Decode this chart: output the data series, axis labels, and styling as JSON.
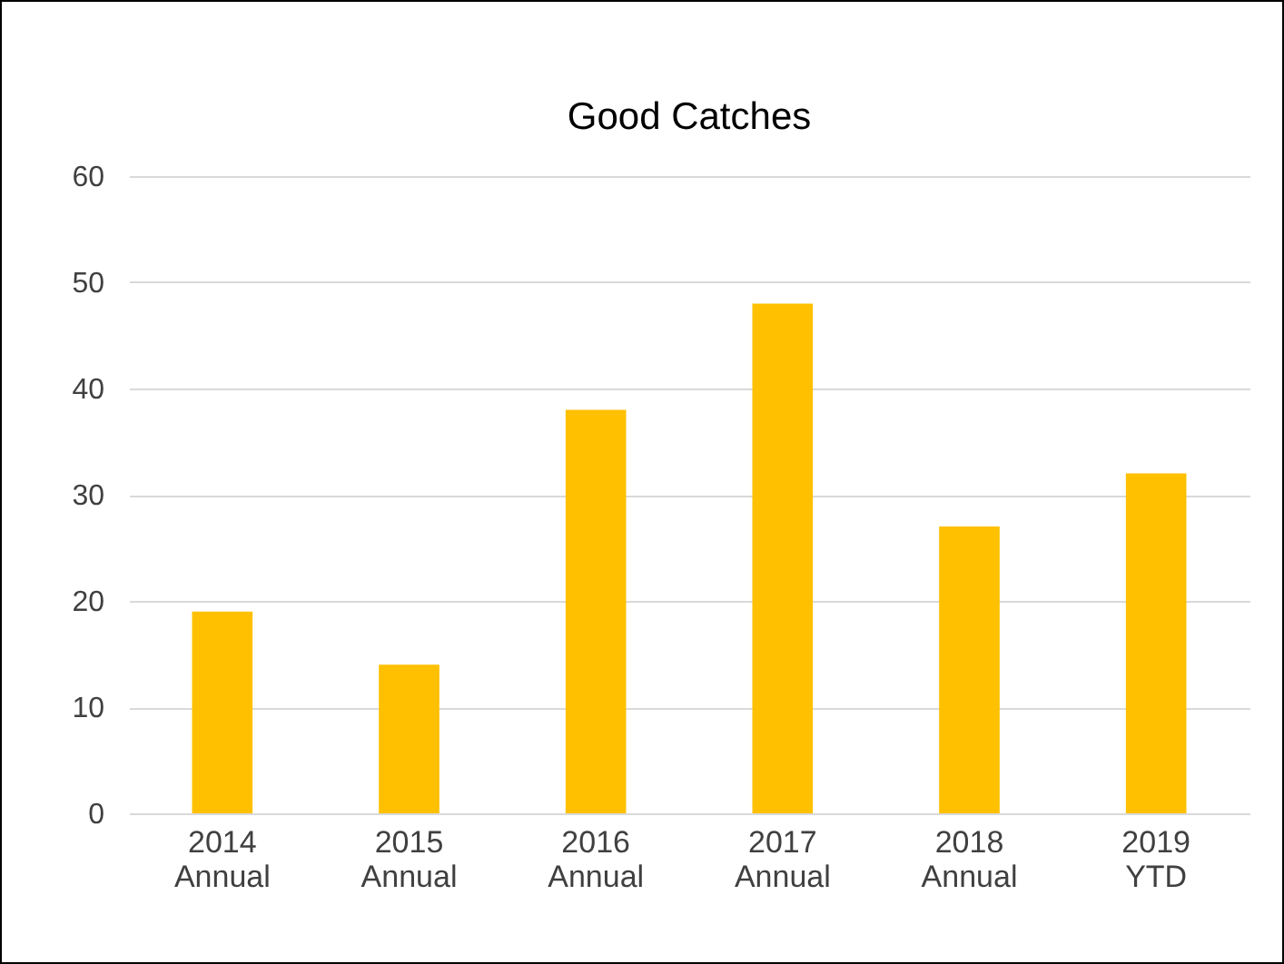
{
  "chart_data": {
    "type": "bar",
    "title": "Good Catches",
    "categories": [
      "2014 Annual",
      "2015 Annual",
      "2016 Annual",
      "2017 Annual",
      "2018 Annual",
      "2019 YTD"
    ],
    "values": [
      19,
      14,
      38,
      48,
      27,
      32
    ],
    "color": "#ffc000",
    "ylim": [
      0,
      60
    ],
    "yticks": [
      0,
      10,
      20,
      30,
      40,
      50,
      60
    ],
    "grid": "y"
  }
}
